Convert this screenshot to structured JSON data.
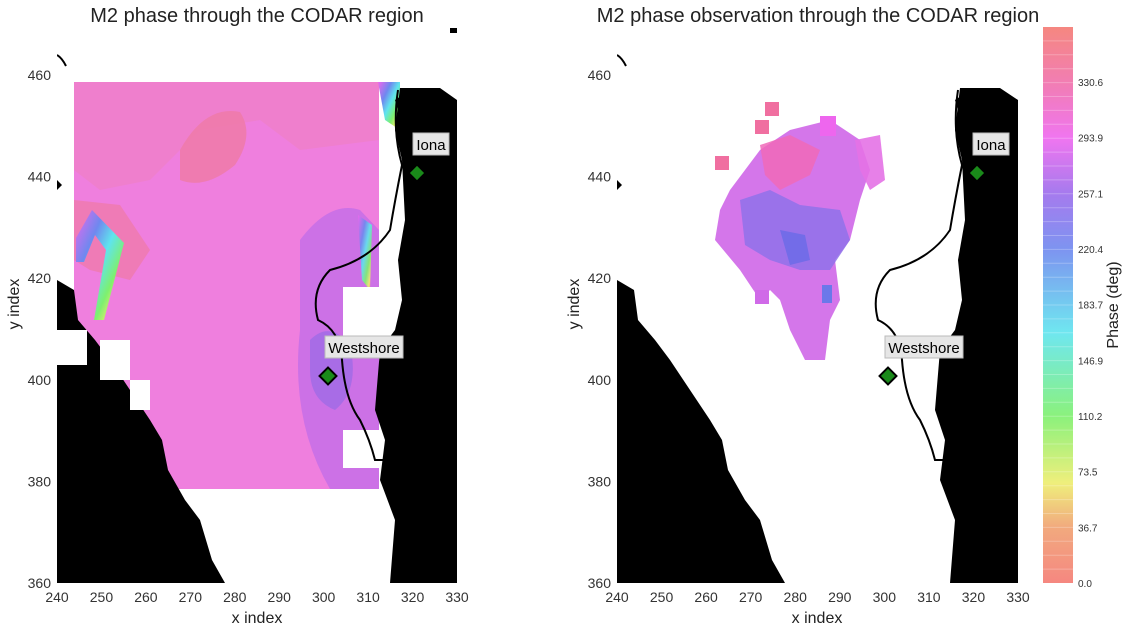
{
  "chart_data": [
    {
      "type": "contour",
      "title": "M2 phase through the CODAR region",
      "xlabel": "x index",
      "ylabel": "y index",
      "xlim": [
        240,
        330
      ],
      "ylim": [
        360,
        460
      ],
      "x_ticks": [
        "240",
        "250",
        "260",
        "270",
        "280",
        "290",
        "300",
        "310",
        "320",
        "330"
      ],
      "y_ticks": [
        "360",
        "380",
        "400",
        "420",
        "440",
        "460"
      ],
      "stations": [
        {
          "name": "Iona",
          "x": 320.5,
          "y": 441
        },
        {
          "name": "Westshore",
          "x": 300.5,
          "y": 401
        }
      ]
    },
    {
      "type": "contour",
      "title": "M2 phase observation through the CODAR region",
      "xlabel": "x index",
      "ylabel": "y index",
      "xlim": [
        240,
        330
      ],
      "ylim": [
        360,
        460
      ],
      "x_ticks": [
        "240",
        "250",
        "260",
        "270",
        "280",
        "290",
        "300",
        "310",
        "320",
        "330"
      ],
      "y_ticks": [
        "360",
        "380",
        "400",
        "420",
        "440",
        "460"
      ],
      "stations": [
        {
          "name": "Iona",
          "x": 320.5,
          "y": 441
        },
        {
          "name": "Westshore",
          "x": 300.5,
          "y": 401
        }
      ]
    }
  ],
  "colorbar": {
    "label": "Phase (deg)",
    "range": [
      0,
      367
    ],
    "ticks": [
      "0.0",
      "36.7",
      "73.5",
      "110.2",
      "146.9",
      "183.7",
      "220.4",
      "257.1",
      "293.9",
      "330.6"
    ],
    "colors": [
      "#f47a72",
      "#f0c070",
      "#eded6d",
      "#7ef06e",
      "#5fe4ee",
      "#6f88ef",
      "#ee66ee",
      "#f06f9c"
    ]
  },
  "colors": {
    "land": "#000000",
    "model_field": "#ee78dc",
    "model_high": "#ef7aa8",
    "model_low": "#b56ce8",
    "obs_field": "#d06ae8",
    "station_marker": "#1a8a1a"
  }
}
